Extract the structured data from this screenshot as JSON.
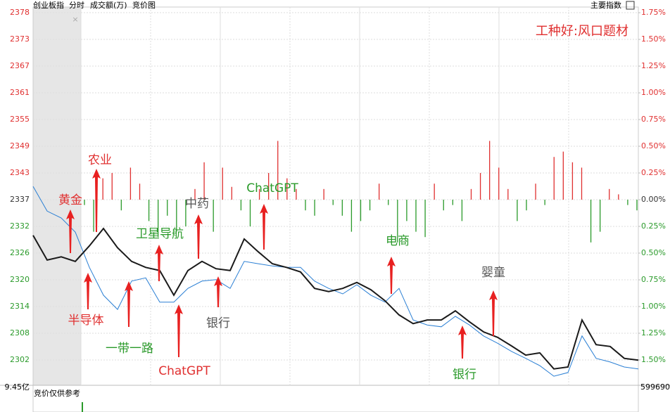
{
  "header": {
    "name": "创业板指",
    "mode": "分时",
    "volume_label": "成交额(万)",
    "auction_label": "竞价图",
    "menu": "主要指数"
  },
  "chart_data": {
    "type": "line",
    "annotation_title": "工种好:风口题材",
    "ylim": [
      2296.41,
      2379.13
    ],
    "yticks": [
      {
        "value": 2377.9,
        "label": "2378"
      },
      {
        "value": 2372.06,
        "label": "2373"
      },
      {
        "value": 2366.22,
        "label": "2367"
      },
      {
        "value": 2360.37,
        "label": "2361"
      },
      {
        "value": 2354.53,
        "label": "2355"
      },
      {
        "value": 2348.69,
        "label": "2349"
      },
      {
        "value": 2342.84,
        "label": "2343"
      },
      {
        "value": 2337,
        "label": "2337"
      },
      {
        "value": 2331.16,
        "label": "2332"
      },
      {
        "value": 2325.31,
        "label": "2326"
      },
      {
        "value": 2319.47,
        "label": "2320"
      },
      {
        "value": 2313.63,
        "label": "2314"
      },
      {
        "value": 2307.78,
        "label": "2308"
      },
      {
        "value": 2301.94,
        "label": "2302"
      }
    ],
    "y2lim": [
      -1.737,
      1.803
    ],
    "y2ticks": [
      {
        "value": 1.75,
        "label": "1.75%"
      },
      {
        "value": 1.5,
        "label": "1.50%"
      },
      {
        "value": 1.25,
        "label": "1.25%"
      },
      {
        "value": 1,
        "label": "1.00%"
      },
      {
        "value": 0.75,
        "label": "0.75%"
      },
      {
        "value": 0.5,
        "label": "0.50%"
      },
      {
        "value": 0.25,
        "label": "0.25%"
      },
      {
        "value": 0,
        "label": "0.00%"
      },
      {
        "value": -0.25,
        "label": "0.25%"
      },
      {
        "value": -0.5,
        "label": "0.50%"
      },
      {
        "value": -0.75,
        "label": "0.75%"
      },
      {
        "value": -1,
        "label": "1.00%"
      },
      {
        "value": -1.25,
        "label": "1.25%"
      },
      {
        "value": -1.5,
        "label": "1.50%"
      }
    ],
    "grid": true,
    "up_color": "#e03030",
    "down_color": "#2a9a2a",
    "flat_color": "#333333",
    "series": [
      {
        "color": "#1a1a1a",
        "values": [
          2329.2,
          2323.8,
          2324.5,
          2323.5,
          2326.9,
          2330.7,
          2326.5,
          2323.5,
          2322.2,
          2321.5,
          2316.1,
          2321.5,
          2323.5,
          2321.9,
          2321.5,
          2328.4,
          2325.6,
          2323.0,
          2322.2,
          2321.2,
          2317.6,
          2316.9,
          2317.6,
          2318.9,
          2317.3,
          2314.9,
          2311.8,
          2309.9,
          2310.7,
          2310.7,
          2312.7,
          2310.3,
          2308.1,
          2306.9,
          2305.0,
          2303.0,
          2303.5,
          2300.0,
          2300.4,
          2310.7,
          2305.3,
          2304.9,
          2302.3,
          2301.9
        ]
      },
      {
        "color": "#2a7fd4",
        "values": [
          2339.9,
          2334.5,
          2333.0,
          2329.9,
          2322.2,
          2316.1,
          2313.0,
          2319.2,
          2319.9,
          2314.6,
          2314.6,
          2317.6,
          2319.2,
          2319.5,
          2317.6,
          2323.5,
          2323.0,
          2322.5,
          2322.2,
          2322.2,
          2319.2,
          2317.6,
          2316.4,
          2318.4,
          2316.1,
          2314.6,
          2317.6,
          2310.7,
          2309.6,
          2309.2,
          2311.5,
          2309.6,
          2307.2,
          2305.6,
          2303.8,
          2302.3,
          2300.7,
          2298.4,
          2299.2,
          2307.2,
          2302.3,
          2301.5,
          2300.4,
          2300.0
        ]
      }
    ],
    "bars": {
      "axis": "y2",
      "values": [
        -0.05,
        -0.3,
        0.2,
        0.25,
        -0.1,
        0.3,
        0.15,
        -0.2,
        -0.35,
        -0.15,
        -0.3,
        -0.25,
        0.1,
        0.35,
        -0.3,
        0.3,
        0.12,
        -0.1,
        -0.25,
        0.1,
        0.25,
        0.55,
        0.2,
        0.1,
        -0.1,
        -0.15,
        0.1,
        -0.05,
        -0.15,
        -0.3,
        -0.2,
        -0.1,
        0.15,
        -0.05,
        -0.4,
        -0.2,
        -0.3,
        -0.35,
        0.15,
        -0.1,
        -0.05,
        -0.2,
        0.1,
        0.25,
        0.55,
        0.3,
        0.1,
        -0.2,
        -0.1,
        0.15,
        -0.05,
        0.4,
        0.45,
        0.35,
        0.3,
        -0.4,
        -0.3,
        0.1,
        0.05,
        -0.05,
        -0.1
      ]
    },
    "annotations": [
      {
        "text": "黄金",
        "color": "#e03030"
      },
      {
        "text": "农业",
        "color": "#e03030"
      },
      {
        "text": "中药",
        "color": "#555555"
      },
      {
        "text": "ChatGPT",
        "color": "#2a9a2a"
      },
      {
        "text": "卫星导航",
        "color": "#2a9a2a"
      },
      {
        "text": "电商",
        "color": "#2a9a2a"
      },
      {
        "text": "婴童",
        "color": "#555555"
      },
      {
        "text": "半导体",
        "color": "#e03030"
      },
      {
        "text": "一带一路",
        "color": "#2a9a2a"
      },
      {
        "text": "ChatGPT",
        "color": "#e03030"
      },
      {
        "text": "银行",
        "color": "#555555"
      },
      {
        "text": "银行",
        "color": "#2a9a2a"
      }
    ]
  },
  "volume_pane": {
    "left_label": "9.45亿",
    "note": "竞价仅供参考",
    "right_label": "599690"
  }
}
